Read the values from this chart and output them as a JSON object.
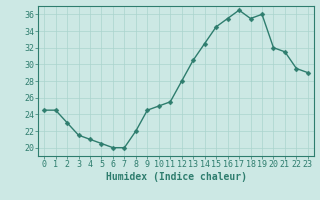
{
  "x": [
    0,
    1,
    2,
    3,
    4,
    5,
    6,
    7,
    8,
    9,
    10,
    11,
    12,
    13,
    14,
    15,
    16,
    17,
    18,
    19,
    20,
    21,
    22,
    23
  ],
  "y": [
    24.5,
    24.5,
    23,
    21.5,
    21,
    20.5,
    20,
    20,
    22,
    24.5,
    25,
    25.5,
    28,
    30.5,
    32.5,
    34.5,
    35.5,
    36.5,
    35.5,
    36,
    32,
    31.5,
    29.5,
    29
  ],
  "line_color": "#2e7d6e",
  "marker_color": "#2e7d6e",
  "bg_color": "#cce8e4",
  "grid_color": "#aad4ce",
  "xlabel": "Humidex (Indice chaleur)",
  "ylim": [
    19,
    37
  ],
  "xlim": [
    -0.5,
    23.5
  ],
  "yticks": [
    20,
    22,
    24,
    26,
    28,
    30,
    32,
    34,
    36
  ],
  "xticks": [
    0,
    1,
    2,
    3,
    4,
    5,
    6,
    7,
    8,
    9,
    10,
    11,
    12,
    13,
    14,
    15,
    16,
    17,
    18,
    19,
    20,
    21,
    22,
    23
  ],
  "xlabel_fontsize": 7,
  "tick_fontsize": 6,
  "line_width": 1.0,
  "marker_size": 2.5
}
